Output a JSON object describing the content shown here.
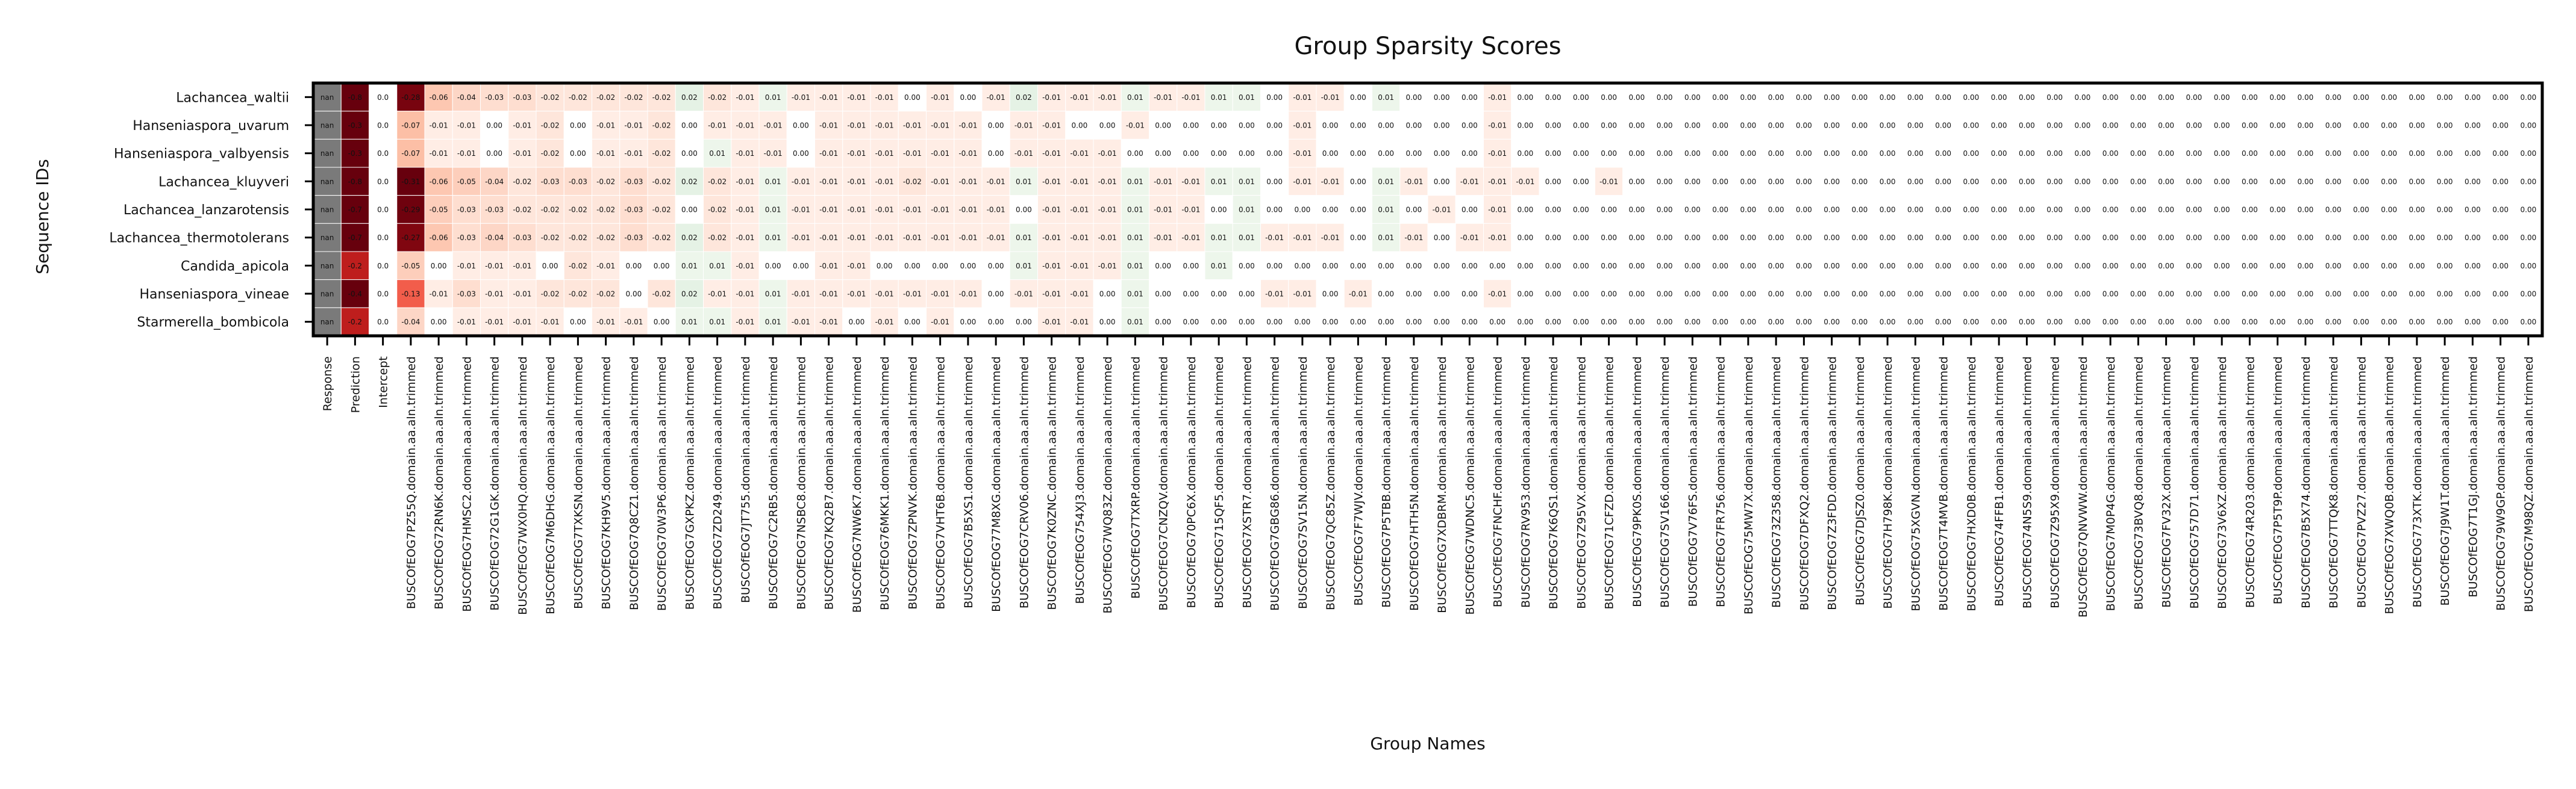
{
  "chart_data": {
    "type": "heatmap",
    "title": "Group Sparsity Scores",
    "xlabel": "Group Names",
    "ylabel": "Sequence IDs",
    "rows": [
      "Lachancea_waltii",
      "Hanseniaspora_uvarum",
      "Hanseniaspora_valbyensis",
      "Lachancea_kluyveri",
      "Lachancea_lanzarotensis",
      "Lachancea_thermotolerans",
      "Candida_apicola",
      "Hanseniaspora_vineae",
      "Starmerella_bombicola"
    ],
    "columns": [
      "Response",
      "Prediction",
      "Intercept",
      "BUSCOfEOG7PZ55Q.domain.aa.aln.trimmed",
      "BUSCOfEOG72RN6K.domain.aa.aln.trimmed",
      "BUSCOfEOG7HMSC2.domain.aa.aln.trimmed",
      "BUSCOfEOG72G1GK.domain.aa.aln.trimmed",
      "BUSCOfEOG7WX0HQ.domain.aa.aln.trimmed",
      "BUSCOfEOG7M6DHG.domain.aa.aln.trimmed",
      "BUSCOfEOG7TXKSN.domain.aa.aln.trimmed",
      "BUSCOfEOG7KH9V5.domain.aa.aln.trimmed",
      "BUSCOfEOG7Q8CZ1.domain.aa.aln.trimmed",
      "BUSCOfEOG70W3P6.domain.aa.aln.trimmed",
      "BUSCOfEOG7GXPKZ.domain.aa.aln.trimmed",
      "BUSCOfEOG7ZD249.domain.aa.aln.trimmed",
      "BUSCOfEOG7JT755.domain.aa.aln.trimmed",
      "BUSCOfEOG7C2RB5.domain.aa.aln.trimmed",
      "BUSCOfEOG7NSBC8.domain.aa.aln.trimmed",
      "BUSCOfEOG7KQ2B7.domain.aa.aln.trimmed",
      "BUSCOfEOG7NW6K7.domain.aa.aln.trimmed",
      "BUSCOfEOG76MKK1.domain.aa.aln.trimmed",
      "BUSCOfEOG7ZPNVK.domain.aa.aln.trimmed",
      "BUSCOfEOG7VHT6B.domain.aa.aln.trimmed",
      "BUSCOfEOG7B5XS1.domain.aa.aln.trimmed",
      "BUSCOfEOG77M8XG.domain.aa.aln.trimmed",
      "BUSCOfEOG7CRV06.domain.aa.aln.trimmed",
      "BUSCOfEOG7K0ZNC.domain.aa.aln.trimmed",
      "BUSCOfEOG754XJ3.domain.aa.aln.trimmed",
      "BUSCOfEOG7WQ83Z.domain.aa.aln.trimmed",
      "BUSCOfEOG7TXRP.domain.aa.aln.trimmed",
      "BUSCOfEOG7CNZQV.domain.aa.aln.trimmed",
      "BUSCOfEOG70PC6X.domain.aa.aln.trimmed",
      "BUSCOfEOG715QF5.domain.aa.aln.trimmed",
      "BUSCOfEOG7XSTR7.domain.aa.aln.trimmed",
      "BUSCOfEOG7GBG86.domain.aa.aln.trimmed",
      "BUSCOfEOG7SV15N.domain.aa.aln.trimmed",
      "BUSCOfEOG7QC85Z.domain.aa.aln.trimmed",
      "BUSCOfEOG7F7WJV.domain.aa.aln.trimmed",
      "BUSCOfEOG7P5TBB.domain.aa.aln.trimmed",
      "BUSCOfEOG7HTH5N.domain.aa.aln.trimmed",
      "BUSCOfEOG7XDBRM.domain.aa.aln.trimmed",
      "BUSCOfEOG7WDNC5.domain.aa.aln.trimmed",
      "BUSCOfEOG7FNCHF.domain.aa.aln.trimmed",
      "BUSCOfEOG7RV953.domain.aa.aln.trimmed",
      "BUSCOfEOG7K6QS1.domain.aa.aln.trimmed",
      "BUSCOfEOG7Z95VX.domain.aa.aln.trimmed",
      "BUSCOfEOG71CFZD.domain.aa.aln.trimmed",
      "BUSCOfEOG79PK0S.domain.aa.aln.trimmed",
      "BUSCOfEOG7SV166.domain.aa.aln.trimmed",
      "BUSCOfEOG7V76FS.domain.aa.aln.trimmed",
      "BUSCOfEOG7FR756.domain.aa.aln.trimmed",
      "BUSCOfEOG75MW7X.domain.aa.aln.trimmed",
      "BUSCOfEOG73Z358.domain.aa.aln.trimmed",
      "BUSCOfEOG7DFXQ2.domain.aa.aln.trimmed",
      "BUSCOfEOG7Z3FDD.domain.aa.aln.trimmed",
      "BUSCOfEOG7DJSZ0.domain.aa.aln.trimmed",
      "BUSCOfEOG7H798K.domain.aa.aln.trimmed",
      "BUSCOfEOG75XGVN.domain.aa.aln.trimmed",
      "BUSCOfEOG7T4MVB.domain.aa.aln.trimmed",
      "BUSCOfEOG7HXD0B.domain.aa.aln.trimmed",
      "BUSCOfEOG74FFB1.domain.aa.aln.trimmed",
      "BUSCOfEOG74N5S9.domain.aa.aln.trimmed",
      "BUSCOfEOG7Z95X9.domain.aa.aln.trimmed",
      "BUSCOfEOG7QNVWW.domain.aa.aln.trimmed",
      "BUSCOfEOG7M0P4G.domain.aa.aln.trimmed",
      "BUSCOfEOG73BVQ8.domain.aa.aln.trimmed",
      "BUSCOfEOG7FV32X.domain.aa.aln.trimmed",
      "BUSCOfEOG757D71.domain.aa.aln.trimmed",
      "BUSCOfEOG73V6XZ.domain.aa.aln.trimmed",
      "BUSCOfEOG74R203.domain.aa.aln.trimmed",
      "BUSCOfEOG7P5T9P.domain.aa.aln.trimmed",
      "BUSCOfEOG7B5X74.domain.aa.aln.trimmed",
      "BUSCOfEOG7TTQK8.domain.aa.aln.trimmed",
      "BUSCOfEOG7PVZ27.domain.aa.aln.trimmed",
      "BUSCOfEOG7XWQ0B.domain.aa.aln.trimmed",
      "BUSCOfEOG773XTK.domain.aa.aln.trimmed",
      "BUSCOfEOG7J9W1T.domain.aa.aln.trimmed",
      "BUSCOfEOG7T1GJ.domain.aa.aln.trimmed",
      "BUSCOfEOG79W9GP.domain.aa.aln.trimmed",
      "BUSCOfEOG7M98QZ.domain.aa.aln.trimmed"
    ],
    "values": [
      [
        "nan",
        -0.8,
        -0.0,
        -0.28,
        -0.06,
        -0.04,
        -0.03,
        -0.03,
        -0.02,
        -0.02,
        -0.02,
        -0.02,
        -0.02,
        0.02,
        -0.02,
        -0.01,
        0.01,
        -0.01,
        -0.01,
        -0.01,
        -0.01,
        0.0,
        -0.01,
        -0.0,
        -0.01,
        0.02,
        -0.01,
        -0.01,
        -0.01,
        0.01,
        -0.01,
        -0.01,
        0.01,
        0.01,
        -0.0,
        -0.01,
        -0.01,
        -0.0,
        0.01,
        -0.0,
        -0.0,
        -0.0,
        -0.01,
        -0.0,
        -0.0,
        -0.0,
        -0.0,
        -0.0,
        -0.0,
        -0.0,
        -0.0,
        -0.0,
        -0.0,
        -0.0,
        -0.0,
        -0.0,
        -0.0,
        -0.0,
        -0.0,
        -0.0,
        -0.0,
        -0.0,
        -0.0,
        -0.0,
        -0.0,
        -0.0,
        -0.0,
        -0.0,
        -0.0,
        -0.0,
        -0.0,
        -0.0,
        -0.0,
        -0.0,
        -0.0,
        -0.0,
        0.0,
        -0.0,
        -0.0,
        -0.0
      ],
      [
        "nan",
        -0.3,
        -0.0,
        -0.07,
        -0.01,
        -0.01,
        0.0,
        -0.01,
        -0.02,
        0.0,
        -0.01,
        -0.01,
        -0.02,
        0.0,
        -0.01,
        -0.01,
        -0.01,
        -0.0,
        -0.01,
        -0.01,
        -0.01,
        -0.01,
        -0.01,
        -0.01,
        0.0,
        -0.01,
        -0.01,
        -0.0,
        0.0,
        -0.01,
        -0.0,
        -0.0,
        -0.0,
        -0.0,
        -0.0,
        -0.01,
        -0.0,
        -0.0,
        -0.0,
        -0.0,
        -0.0,
        -0.0,
        -0.01,
        0.0,
        -0.0,
        -0.0,
        -0.0,
        -0.0,
        -0.0,
        -0.0,
        -0.0,
        -0.0,
        -0.0,
        -0.0,
        -0.0,
        -0.0,
        -0.0,
        -0.0,
        -0.0,
        -0.0,
        -0.0,
        -0.0,
        -0.0,
        -0.0,
        -0.0,
        -0.0,
        -0.0,
        -0.0,
        -0.0,
        -0.0,
        -0.0,
        -0.0,
        -0.0,
        -0.0,
        -0.0,
        -0.0,
        -0.0,
        -0.0,
        -0.0,
        -0.0
      ],
      [
        "nan",
        -0.3,
        -0.0,
        -0.07,
        -0.01,
        -0.01,
        0.0,
        -0.01,
        -0.02,
        0.0,
        -0.01,
        -0.01,
        -0.02,
        0.0,
        0.01,
        -0.01,
        -0.01,
        -0.0,
        -0.01,
        -0.01,
        -0.01,
        -0.01,
        -0.01,
        -0.01,
        0.0,
        -0.01,
        -0.01,
        -0.01,
        -0.01,
        -0.0,
        -0.0,
        -0.0,
        0.0,
        0.0,
        -0.0,
        -0.01,
        -0.0,
        0.0,
        -0.0,
        -0.0,
        -0.0,
        -0.0,
        -0.01,
        -0.0,
        -0.0,
        -0.0,
        -0.0,
        -0.0,
        -0.0,
        -0.0,
        -0.0,
        -0.0,
        -0.0,
        -0.0,
        -0.0,
        -0.0,
        -0.0,
        -0.0,
        -0.0,
        -0.0,
        -0.0,
        -0.0,
        -0.0,
        -0.0,
        -0.0,
        -0.0,
        -0.0,
        -0.0,
        -0.0,
        -0.0,
        -0.0,
        -0.0,
        -0.0,
        -0.0,
        -0.0,
        -0.0,
        -0.0,
        -0.0,
        -0.0,
        -0.0
      ],
      [
        "nan",
        -0.8,
        -0.0,
        -0.31,
        -0.06,
        -0.05,
        -0.04,
        -0.02,
        -0.03,
        -0.03,
        -0.02,
        -0.03,
        -0.02,
        0.02,
        -0.02,
        -0.01,
        0.01,
        -0.01,
        -0.01,
        -0.01,
        -0.01,
        -0.02,
        -0.01,
        -0.01,
        -0.01,
        0.01,
        -0.01,
        -0.01,
        -0.01,
        0.01,
        -0.01,
        -0.01,
        0.01,
        0.01,
        -0.0,
        -0.01,
        -0.01,
        -0.0,
        0.01,
        -0.01,
        -0.0,
        -0.01,
        -0.01,
        -0.01,
        -0.0,
        -0.0,
        -0.01,
        -0.0,
        -0.0,
        -0.0,
        -0.0,
        -0.0,
        -0.0,
        -0.0,
        -0.0,
        -0.0,
        -0.0,
        -0.0,
        -0.0,
        -0.0,
        -0.0,
        -0.0,
        -0.0,
        -0.0,
        -0.0,
        -0.0,
        -0.0,
        -0.0,
        -0.0,
        -0.0,
        -0.0,
        -0.0,
        -0.0,
        -0.0,
        -0.0,
        -0.0,
        -0.0,
        -0.0,
        -0.0,
        -0.0
      ],
      [
        "nan",
        -0.7,
        -0.0,
        -0.29,
        -0.05,
        -0.03,
        -0.03,
        -0.02,
        -0.02,
        -0.02,
        -0.02,
        -0.03,
        -0.02,
        0.0,
        -0.02,
        -0.01,
        0.01,
        -0.01,
        -0.01,
        -0.01,
        -0.01,
        -0.01,
        -0.01,
        -0.01,
        -0.01,
        0.0,
        -0.01,
        -0.01,
        -0.01,
        0.01,
        -0.01,
        -0.01,
        0.0,
        0.01,
        -0.0,
        -0.0,
        -0.0,
        -0.0,
        0.01,
        -0.0,
        -0.01,
        -0.0,
        -0.01,
        -0.0,
        -0.0,
        -0.0,
        -0.0,
        -0.0,
        -0.0,
        -0.0,
        -0.0,
        -0.0,
        -0.0,
        -0.0,
        -0.0,
        -0.0,
        -0.0,
        -0.0,
        -0.0,
        -0.0,
        -0.0,
        -0.0,
        -0.0,
        -0.0,
        -0.0,
        -0.0,
        -0.0,
        -0.0,
        -0.0,
        -0.0,
        -0.0,
        -0.0,
        -0.0,
        -0.0,
        -0.0,
        -0.0,
        -0.0,
        -0.0,
        -0.0,
        -0.0
      ],
      [
        "nan",
        -0.7,
        -0.0,
        -0.27,
        -0.06,
        -0.03,
        -0.04,
        -0.03,
        -0.02,
        -0.02,
        -0.02,
        -0.03,
        -0.02,
        0.02,
        -0.02,
        -0.01,
        0.01,
        -0.01,
        -0.01,
        -0.01,
        -0.01,
        -0.01,
        -0.01,
        -0.01,
        -0.01,
        0.01,
        -0.01,
        -0.01,
        -0.01,
        0.01,
        -0.01,
        -0.01,
        0.01,
        0.01,
        -0.01,
        -0.01,
        -0.01,
        -0.0,
        0.01,
        -0.01,
        -0.0,
        -0.01,
        -0.01,
        -0.0,
        -0.0,
        -0.0,
        -0.0,
        -0.0,
        -0.0,
        -0.0,
        -0.0,
        -0.0,
        -0.0,
        -0.0,
        -0.0,
        -0.0,
        -0.0,
        -0.0,
        -0.0,
        -0.0,
        -0.0,
        -0.0,
        -0.0,
        -0.0,
        -0.0,
        -0.0,
        -0.0,
        -0.0,
        -0.0,
        -0.0,
        -0.0,
        -0.0,
        -0.0,
        -0.0,
        -0.0,
        -0.0,
        -0.0,
        -0.0,
        -0.0,
        -0.0
      ],
      [
        "nan",
        -0.2,
        -0.0,
        -0.05,
        0.0,
        -0.01,
        -0.01,
        -0.01,
        -0.0,
        -0.02,
        -0.01,
        -0.0,
        -0.0,
        0.01,
        0.01,
        -0.01,
        0.0,
        -0.0,
        -0.01,
        -0.01,
        -0.0,
        -0.0,
        -0.0,
        -0.0,
        0.0,
        0.01,
        -0.01,
        -0.01,
        -0.01,
        0.01,
        -0.0,
        -0.0,
        0.01,
        0.0,
        -0.0,
        -0.0,
        -0.0,
        -0.0,
        0.0,
        -0.0,
        -0.0,
        -0.0,
        -0.0,
        0.0,
        0.0,
        -0.0,
        -0.0,
        -0.0,
        -0.0,
        -0.0,
        -0.0,
        -0.0,
        -0.0,
        -0.0,
        -0.0,
        -0.0,
        -0.0,
        -0.0,
        -0.0,
        -0.0,
        -0.0,
        -0.0,
        -0.0,
        -0.0,
        -0.0,
        -0.0,
        -0.0,
        -0.0,
        -0.0,
        -0.0,
        -0.0,
        -0.0,
        -0.0,
        -0.0,
        -0.0,
        -0.0,
        -0.0,
        -0.0,
        -0.0,
        -0.0
      ],
      [
        "nan",
        -0.4,
        -0.0,
        -0.13,
        -0.01,
        -0.03,
        -0.01,
        -0.01,
        -0.02,
        -0.02,
        -0.02,
        0.0,
        -0.02,
        0.02,
        -0.01,
        -0.01,
        0.01,
        -0.01,
        -0.01,
        -0.01,
        -0.01,
        -0.01,
        -0.01,
        -0.01,
        0.0,
        -0.01,
        -0.01,
        -0.01,
        -0.0,
        0.01,
        -0.0,
        -0.0,
        0.0,
        0.0,
        -0.01,
        -0.01,
        -0.0,
        -0.01,
        -0.0,
        -0.0,
        -0.0,
        -0.0,
        -0.01,
        -0.0,
        -0.0,
        -0.0,
        -0.0,
        -0.0,
        -0.0,
        -0.0,
        -0.0,
        -0.0,
        -0.0,
        -0.0,
        -0.0,
        -0.0,
        -0.0,
        -0.0,
        -0.0,
        -0.0,
        -0.0,
        -0.0,
        -0.0,
        -0.0,
        -0.0,
        -0.0,
        -0.0,
        -0.0,
        -0.0,
        -0.0,
        -0.0,
        -0.0,
        -0.0,
        -0.0,
        -0.0,
        -0.0,
        -0.0,
        -0.0,
        -0.0,
        -0.0
      ],
      [
        "nan",
        -0.2,
        -0.0,
        -0.04,
        0.0,
        -0.01,
        -0.01,
        -0.01,
        -0.01,
        -0.0,
        -0.01,
        -0.01,
        0.0,
        0.01,
        0.01,
        -0.01,
        0.01,
        -0.01,
        -0.01,
        -0.0,
        -0.01,
        -0.0,
        -0.01,
        -0.0,
        -0.0,
        0.0,
        -0.01,
        -0.01,
        -0.0,
        0.01,
        -0.0,
        -0.0,
        0.0,
        0.0,
        -0.0,
        -0.0,
        -0.0,
        -0.0,
        0.0,
        -0.0,
        -0.0,
        -0.0,
        -0.0,
        -0.0,
        -0.0,
        -0.0,
        -0.0,
        -0.0,
        -0.0,
        -0.0,
        -0.0,
        -0.0,
        -0.0,
        -0.0,
        -0.0,
        -0.0,
        -0.0,
        -0.0,
        -0.0,
        -0.0,
        -0.0,
        -0.0,
        -0.0,
        -0.0,
        -0.0,
        -0.0,
        -0.0,
        -0.0,
        -0.0,
        -0.0,
        -0.0,
        -0.0,
        -0.0,
        -0.0,
        -0.0,
        -0.0,
        -0.0,
        -0.0,
        -0.0,
        -0.0
      ]
    ]
  }
}
